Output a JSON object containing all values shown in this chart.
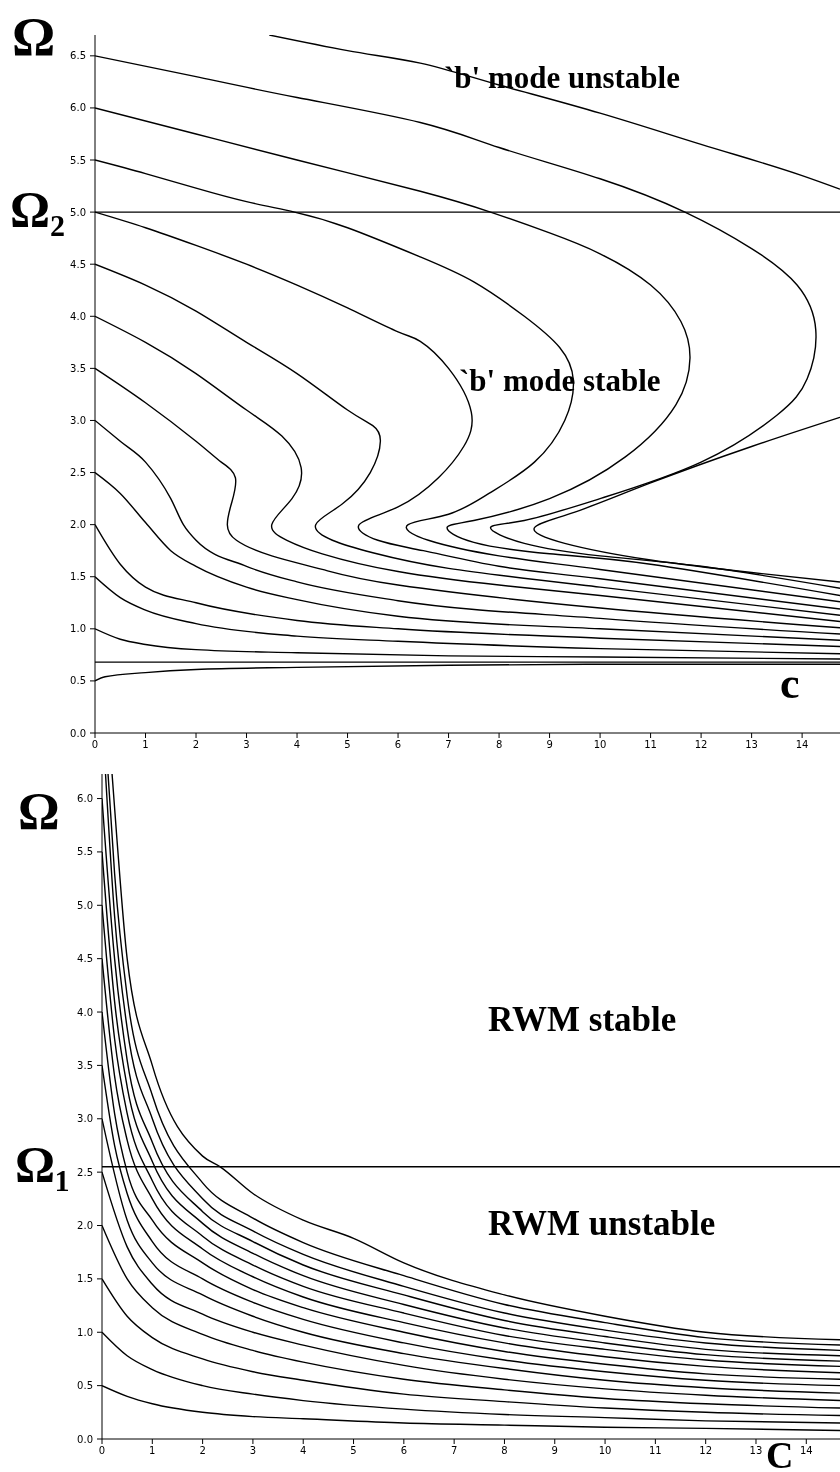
{
  "chart_data": [
    {
      "type": "line",
      "xlabel": "c",
      "ylabel": "Ω",
      "xlim": [
        0,
        14.75
      ],
      "ylim": [
        0,
        6.7
      ],
      "xticks": [
        0,
        1,
        2,
        3,
        4,
        5,
        6,
        7,
        8,
        9,
        10,
        11,
        12,
        13,
        14
      ],
      "yticks": [
        {
          "value": 0,
          "label": "0.0"
        },
        {
          "value": 0.5,
          "label": "0.5"
        },
        {
          "value": 1,
          "label": "1.0"
        },
        {
          "value": 1.5,
          "label": "1.5"
        },
        {
          "value": 2,
          "label": "2.0"
        },
        {
          "value": 2.5,
          "label": "2.5"
        },
        {
          "value": 3,
          "label": "3.0"
        },
        {
          "value": 3.5,
          "label": "3.5"
        },
        {
          "value": 4,
          "label": "4.0"
        },
        {
          "value": 4.5,
          "label": "4.5"
        },
        {
          "value": 5,
          "label": "5.0"
        },
        {
          "value": 5.5,
          "label": "5.5"
        },
        {
          "value": 6,
          "label": "6.0"
        },
        {
          "value": 6.5,
          "label": "6.5"
        }
      ],
      "ref_lines": [
        {
          "axis": "y",
          "value": 5,
          "label": "Ω₂"
        },
        {
          "axis": "y",
          "value": 0.68
        }
      ],
      "annotations": [
        "`b' mode unstable",
        "`b' mode stable"
      ],
      "series": [
        {
          "color": "#000000",
          "x": [
            0,
            0.2,
            1,
            2,
            4,
            7,
            10,
            14.75
          ],
          "values": [
            0.5,
            0.54,
            0.58,
            0.61,
            0.63,
            0.65,
            0.66,
            0.66
          ]
        },
        {
          "color": "#000000",
          "x": [
            0,
            0.5,
            1,
            2,
            4,
            7,
            10,
            14.75
          ],
          "values": [
            1,
            0.9,
            0.85,
            0.8,
            0.77,
            0.74,
            0.73,
            0.71
          ]
        },
        {
          "color": "#000000",
          "x": [
            0,
            0.5,
            1,
            2,
            4,
            6,
            10,
            14.75
          ],
          "values": [
            1.5,
            1.3,
            1.18,
            1.05,
            0.93,
            0.88,
            0.81,
            0.76
          ]
        },
        {
          "color": "#000000",
          "x": [
            0,
            0.5,
            1,
            2,
            4,
            6,
            10,
            14.75
          ],
          "values": [
            2,
            1.62,
            1.4,
            1.25,
            1.08,
            1.0,
            0.91,
            0.83
          ]
        },
        {
          "color": "#000000",
          "x": [
            0,
            0.5,
            1,
            1.5,
            2,
            3,
            4,
            6,
            10,
            14.75
          ],
          "values": [
            2.5,
            2.3,
            2.02,
            1.75,
            1.6,
            1.4,
            1.28,
            1.12,
            1.0,
            0.89
          ]
        },
        {
          "color": "#000000",
          "x": [
            0,
            0.5,
            1,
            1.5,
            1.75,
            2,
            3,
            4,
            6,
            10,
            14.75
          ],
          "values": [
            3,
            2.8,
            2.6,
            2.25,
            2.0,
            1.85,
            1.6,
            1.45,
            1.27,
            1.1,
            0.95
          ]
        },
        {
          "color": "#000000",
          "x": [
            0,
            1,
            2,
            2.5,
            2.78,
            2.7,
            2.62,
            2.8,
            3.5,
            4.5,
            6,
            10,
            14.75
          ],
          "values": [
            3.5,
            3.17,
            2.8,
            2.6,
            2.45,
            2.2,
            2.0,
            1.85,
            1.7,
            1.57,
            1.42,
            1.2,
            1.01
          ]
        },
        {
          "color": "#000000",
          "x": [
            0,
            1,
            2,
            3,
            3.7,
            4.08,
            3.9,
            3.5,
            3.8,
            4.5,
            6,
            8,
            10,
            14.75
          ],
          "values": [
            4,
            3.75,
            3.45,
            3.1,
            2.85,
            2.55,
            2.25,
            2.0,
            1.85,
            1.72,
            1.55,
            1.42,
            1.32,
            1.07
          ]
        },
        {
          "color": "#000000",
          "x": [
            0,
            1,
            2,
            3,
            4,
            5,
            5.5,
            5.65,
            5.45,
            4.9,
            4.37,
            4.7,
            5.5,
            7,
            10,
            14.75
          ],
          "values": [
            4.5,
            4.3,
            4.05,
            3.75,
            3.45,
            3.1,
            2.95,
            2.8,
            2.5,
            2.2,
            2.0,
            1.85,
            1.73,
            1.58,
            1.4,
            1.13
          ]
        },
        {
          "color": "#000000",
          "x": [
            0,
            1,
            2,
            3,
            4,
            5,
            6,
            6.44,
            7,
            7.45,
            7.3,
            6.8,
            6,
            5.23,
            5.6,
            6.5,
            8,
            10,
            14.75
          ],
          "values": [
            5,
            4.85,
            4.68,
            4.5,
            4.3,
            4.08,
            3.85,
            3.76,
            3.5,
            3.08,
            2.75,
            2.45,
            2.17,
            2.0,
            1.85,
            1.75,
            1.6,
            1.48,
            1.19
          ]
        },
        {
          "color": "#000000",
          "x": [
            0,
            1,
            2,
            3,
            3.95,
            5,
            6.44,
            7.5,
            8.5,
            9.2,
            9.47,
            9.3,
            8.7,
            7.8,
            7,
            6.2,
            6.6,
            8,
            10,
            14.75
          ],
          "values": [
            5.5,
            5.37,
            5.23,
            5.1,
            5.0,
            4.85,
            4.57,
            4.33,
            4.0,
            3.7,
            3.39,
            3.0,
            2.6,
            2.3,
            2.1,
            2.0,
            1.85,
            1.7,
            1.57,
            1.26
          ]
        },
        {
          "color": "#000000",
          "x": [
            0,
            2,
            4,
            6.44,
            7.83,
            9,
            10,
            11,
            11.6,
            11.78,
            11.5,
            10.5,
            9,
            7.5,
            6.97,
            7.5,
            9,
            11,
            14.75
          ],
          "values": [
            6,
            5.75,
            5.5,
            5.2,
            5.0,
            4.8,
            4.6,
            4.3,
            3.95,
            3.6,
            3.15,
            2.65,
            2.25,
            2.04,
            1.97,
            1.83,
            1.72,
            1.62,
            1.32
          ]
        },
        {
          "color": "#000000",
          "x": [
            0,
            2,
            4,
            6.44,
            8,
            10,
            11.68,
            13,
            13.9,
            14.27,
            14.1,
            13.5,
            12,
            10,
            8.5,
            7.83,
            8.5,
            10,
            12,
            14.75
          ],
          "values": [
            6.5,
            6.3,
            6.1,
            5.86,
            5.62,
            5.32,
            5.0,
            4.65,
            4.3,
            3.87,
            3.4,
            3.05,
            2.6,
            2.25,
            2.04,
            1.97,
            1.82,
            1.7,
            1.6,
            1.39
          ]
        },
        {
          "color": "#000000",
          "x": [
            3.45,
            5,
            6.44,
            8,
            10,
            12,
            14,
            14.75
          ],
          "values": [
            6.7,
            6.55,
            6.43,
            6.22,
            5.95,
            5.65,
            5.35,
            5.22
          ]
        },
        {
          "color": "#000000",
          "x": [
            14.75,
            13,
            11,
            9.5,
            8.7,
            9.3,
            11,
            13,
            14.75
          ],
          "values": [
            3.03,
            2.75,
            2.4,
            2.12,
            1.97,
            1.82,
            1.66,
            1.54,
            1.45
          ]
        }
      ]
    },
    {
      "type": "line",
      "xlabel": "C",
      "ylabel": "Ω",
      "xlim": [
        0,
        14.67
      ],
      "ylim": [
        0,
        6.23
      ],
      "xticks": [
        0,
        1,
        2,
        3,
        4,
        5,
        6,
        7,
        8,
        9,
        10,
        11,
        12,
        13,
        14
      ],
      "yticks": [
        {
          "value": 0,
          "label": "0.0"
        },
        {
          "value": 0.5,
          "label": "0.5"
        },
        {
          "value": 1,
          "label": "1.0"
        },
        {
          "value": 1.5,
          "label": "1.5"
        },
        {
          "value": 2,
          "label": "2.0"
        },
        {
          "value": 2.5,
          "label": "2.5"
        },
        {
          "value": 3,
          "label": "3.0"
        },
        {
          "value": 3.5,
          "label": "3.5"
        },
        {
          "value": 4,
          "label": "4.0"
        },
        {
          "value": 4.5,
          "label": "4.5"
        },
        {
          "value": 5,
          "label": "5.0"
        },
        {
          "value": 5.5,
          "label": "5.5"
        },
        {
          "value": 6,
          "label": "6.0"
        }
      ],
      "ref_lines": [
        {
          "axis": "y",
          "value": 2.55,
          "label": "Ω₁"
        }
      ],
      "annotations": [
        "RWM stable",
        "RWM unstable"
      ],
      "series": [
        {
          "color": "#000000",
          "x": [
            0,
            0.5,
            1,
            2,
            3,
            4,
            6,
            8,
            10,
            12,
            14.67
          ],
          "values": [
            0.5,
            0.4,
            0.33,
            0.25,
            0.21,
            0.19,
            0.15,
            0.13,
            0.11,
            0.1,
            0.08
          ]
        },
        {
          "color": "#000000",
          "x": [
            0,
            0.5,
            1,
            2,
            3,
            4,
            6,
            8,
            10,
            12,
            14.67
          ],
          "values": [
            1,
            0.78,
            0.65,
            0.5,
            0.42,
            0.36,
            0.28,
            0.23,
            0.2,
            0.17,
            0.15
          ]
        },
        {
          "color": "#000000",
          "x": [
            0,
            0.5,
            1,
            2,
            3,
            4,
            6,
            8,
            10,
            12,
            14.67
          ],
          "values": [
            1.5,
            1.15,
            0.95,
            0.75,
            0.63,
            0.55,
            0.42,
            0.35,
            0.29,
            0.25,
            0.22
          ]
        },
        {
          "color": "#000000",
          "x": [
            0,
            0.5,
            1,
            2,
            3,
            4,
            6,
            8,
            10,
            12,
            14.67
          ],
          "values": [
            2,
            1.5,
            1.23,
            0.98,
            0.83,
            0.72,
            0.56,
            0.46,
            0.38,
            0.33,
            0.29
          ]
        },
        {
          "color": "#000000",
          "x": [
            0,
            0.5,
            1,
            2,
            3,
            4,
            6,
            8,
            10,
            12,
            14.67
          ],
          "values": [
            2.5,
            1.8,
            1.45,
            1.17,
            1.0,
            0.88,
            0.69,
            0.56,
            0.47,
            0.41,
            0.36
          ]
        },
        {
          "color": "#000000",
          "x": [
            0,
            0.5,
            1,
            2,
            3,
            4,
            6,
            8,
            10,
            12,
            14.67
          ],
          "values": [
            3,
            2.05,
            1.65,
            1.35,
            1.15,
            1.0,
            0.8,
            0.66,
            0.55,
            0.48,
            0.43
          ]
        },
        {
          "color": "#000000",
          "x": [
            0,
            0.25,
            0.5,
            1,
            2,
            3,
            4,
            6,
            8,
            10,
            12,
            14.67
          ],
          "values": [
            3.5,
            2.75,
            2.3,
            1.85,
            1.5,
            1.28,
            1.12,
            0.9,
            0.74,
            0.63,
            0.55,
            0.5
          ]
        },
        {
          "color": "#000000",
          "x": [
            0,
            0.25,
            0.5,
            1,
            2,
            3,
            4,
            6,
            8,
            10,
            12,
            14.67
          ],
          "values": [
            4,
            3.05,
            2.5,
            2.05,
            1.65,
            1.4,
            1.23,
            1.0,
            0.82,
            0.7,
            0.61,
            0.56
          ]
        },
        {
          "color": "#000000",
          "x": [
            0,
            0.25,
            0.5,
            1,
            2,
            3,
            4,
            6,
            8,
            10,
            12,
            14.67
          ],
          "values": [
            4.5,
            3.4,
            2.8,
            2.25,
            1.78,
            1.52,
            1.33,
            1.09,
            0.9,
            0.77,
            0.68,
            0.62
          ]
        },
        {
          "color": "#000000",
          "x": [
            0,
            0.25,
            0.5,
            1,
            2,
            3,
            4,
            6,
            8,
            10,
            12,
            14.67
          ],
          "values": [
            5,
            3.75,
            3.05,
            2.42,
            1.9,
            1.63,
            1.43,
            1.18,
            0.97,
            0.84,
            0.74,
            0.68
          ]
        },
        {
          "color": "#000000",
          "x": [
            0,
            0.25,
            0.5,
            1,
            2,
            3,
            4,
            6,
            8,
            10,
            12,
            14.67
          ],
          "values": [
            5.5,
            4.1,
            3.3,
            2.6,
            2.02,
            1.74,
            1.53,
            1.26,
            1.04,
            0.9,
            0.79,
            0.73
          ]
        },
        {
          "color": "#000000",
          "x": [
            0,
            0.25,
            0.5,
            1,
            2,
            3,
            4,
            6,
            8,
            10,
            12,
            14.67
          ],
          "values": [
            6,
            4.5,
            3.55,
            2.78,
            2.13,
            1.85,
            1.63,
            1.35,
            1.11,
            0.96,
            0.84,
            0.78
          ]
        },
        {
          "color": "#000000",
          "x": [
            0.07,
            0.25,
            0.5,
            1,
            2,
            3,
            4,
            6,
            8,
            10,
            12,
            14.67
          ],
          "values": [
            6.23,
            4.9,
            3.85,
            3.0,
            2.25,
            1.95,
            1.73,
            1.43,
            1.18,
            1.02,
            0.9,
            0.83
          ]
        },
        {
          "color": "#000000",
          "x": [
            0.12,
            0.25,
            0.5,
            1,
            2,
            3,
            4,
            6,
            8,
            10,
            12,
            14.67
          ],
          "values": [
            6.23,
            5.3,
            4.15,
            3.22,
            2.4,
            2.07,
            1.84,
            1.53,
            1.26,
            1.09,
            0.95,
            0.88
          ]
        },
        {
          "color": "#000000",
          "x": [
            0.2,
            0.3,
            0.5,
            1,
            2,
            2.35,
            3,
            4,
            5,
            6,
            8,
            10,
            12,
            14.67
          ],
          "values": [
            6.23,
            5.6,
            4.5,
            3.5,
            2.65,
            2.55,
            2.3,
            2.05,
            1.88,
            1.65,
            1.35,
            1.15,
            1.0,
            0.93
          ]
        }
      ]
    }
  ]
}
